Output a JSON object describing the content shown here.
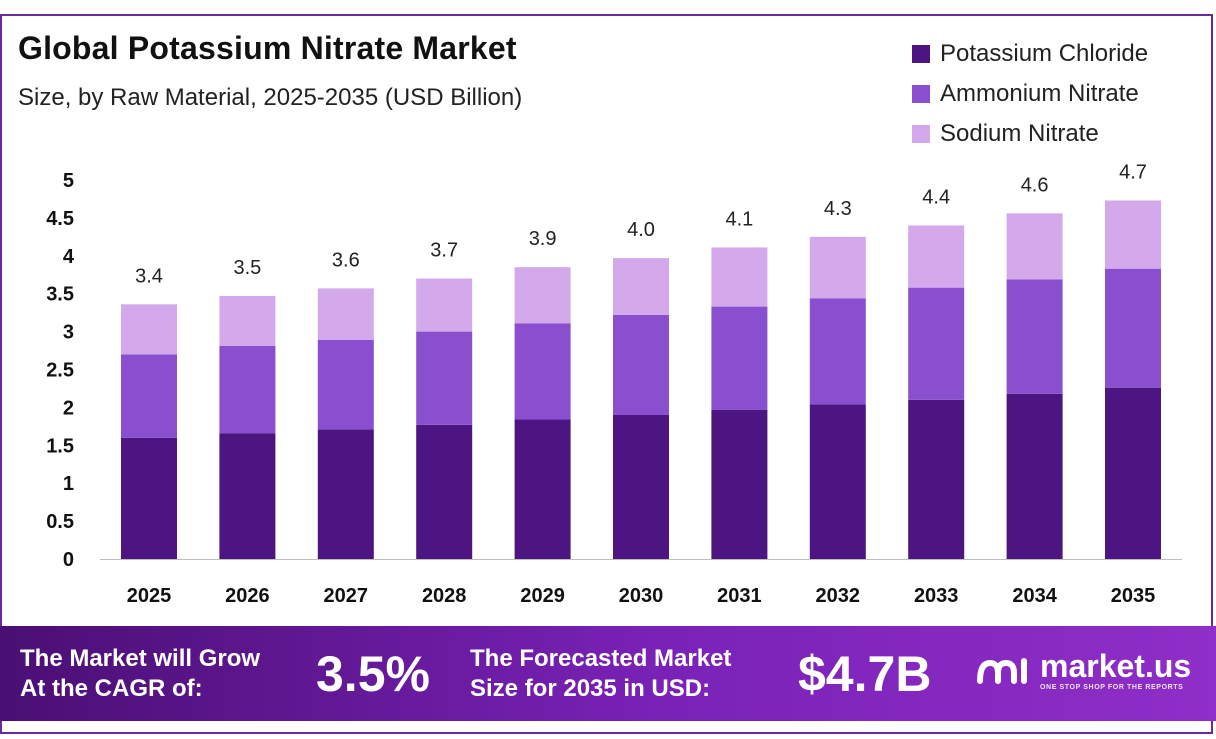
{
  "header": {
    "title": "Global Potassium Nitrate Market",
    "subtitle": "Size, by Raw Material, 2025-2035 (USD Billion)"
  },
  "colors": {
    "potassium_chloride": "#4c1582",
    "ammonium_nitrate": "#8a4fcf",
    "sodium_nitrate": "#d3a9eb",
    "frame": "#6b2a9a"
  },
  "chart_data": {
    "type": "bar",
    "stacked": true,
    "categories": [
      "2025",
      "2026",
      "2027",
      "2028",
      "2029",
      "2030",
      "2031",
      "2032",
      "2033",
      "2034",
      "2035"
    ],
    "series": [
      {
        "name": "Potassium Chloride",
        "values": [
          1.6,
          1.66,
          1.71,
          1.77,
          1.84,
          1.9,
          1.97,
          2.04,
          2.1,
          2.18,
          2.26
        ]
      },
      {
        "name": "Ammonium Nitrate",
        "values": [
          1.1,
          1.15,
          1.18,
          1.23,
          1.27,
          1.32,
          1.36,
          1.4,
          1.48,
          1.51,
          1.57
        ]
      },
      {
        "name": "Sodium Nitrate",
        "values": [
          0.66,
          0.66,
          0.68,
          0.7,
          0.74,
          0.75,
          0.78,
          0.81,
          0.82,
          0.87,
          0.9
        ]
      }
    ],
    "totals": [
      "3.4",
      "3.5",
      "3.6",
      "3.7",
      "3.9",
      "4.0",
      "4.1",
      "4.3",
      "4.4",
      "4.6",
      "4.7"
    ],
    "y_ticks": [
      "0",
      "0.5",
      "1",
      "1.5",
      "2",
      "2.5",
      "3",
      "3.5",
      "4",
      "4.5",
      "5"
    ],
    "ylim": [
      0,
      5
    ],
    "grid": false,
    "legend_position": "top-right",
    "xlabel": "",
    "ylabel": ""
  },
  "banner": {
    "cagr_label_line1": "The Market will Grow",
    "cagr_label_line2": "At the CAGR of:",
    "cagr_value": "3.5%",
    "forecast_label_line1": "The Forecasted Market",
    "forecast_label_line2": "Size for 2035 in USD:",
    "forecast_value": "$4.7B",
    "brand_name": "market.us",
    "brand_tagline": "ONE STOP SHOP FOR THE REPORTS",
    "brand_icon": "market-us-logo-icon"
  }
}
